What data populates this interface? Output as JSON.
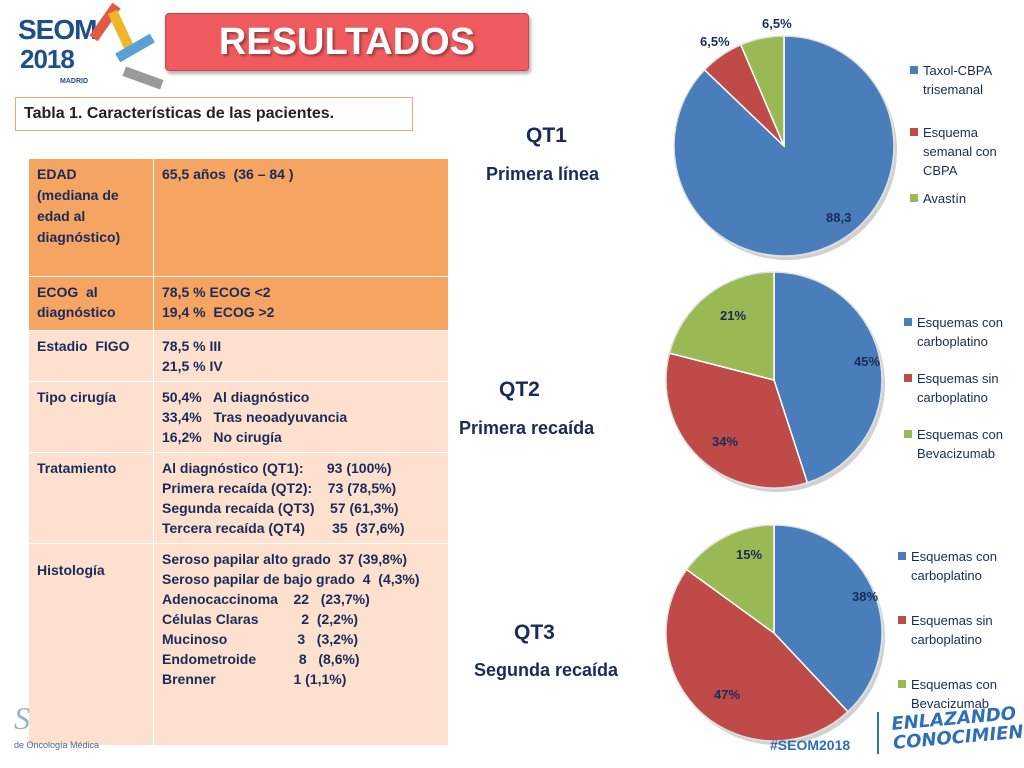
{
  "header": {
    "logo_line1": "SEOM",
    "logo_line2": "2018",
    "logo_city": "MADRID",
    "title": "RESULTADOS"
  },
  "table": {
    "caption": "Tabla 1. Características de las pacientes.",
    "rows": [
      {
        "label": [
          "EDAD",
          "(mediana de",
          "edad al",
          "diagnóstico)"
        ],
        "value": [
          "65,5 años  (36 – 84 )"
        ]
      },
      {
        "label": [
          "ECOG  al",
          "diagnóstico"
        ],
        "value": [
          "78,5 % ECOG <2",
          "19,4 %  ECOG >2"
        ]
      },
      {
        "label": [
          "Estadio  FIGO"
        ],
        "value": [
          "78,5 % III",
          "21,5 % IV"
        ]
      },
      {
        "label": [
          "Tipo cirugía"
        ],
        "value": [
          "50,4%   Al diagnóstico",
          "33,4%   Tras neoadyuvancia",
          "16,2%   No cirugía"
        ]
      },
      {
        "label": [
          "Tratamiento"
        ],
        "value": [
          "Al diagnóstico (QT1):      93 (100%)",
          "Primera recaída (QT2):    73 (78,5%)",
          "Segunda recaída (QT3)    57 (61,3%)",
          "Tercera recaída (QT4)       35  (37,6%)"
        ]
      },
      {
        "label": [
          "",
          "Histología"
        ],
        "value": [
          "Seroso papilar alto grado  37 (39,8%)",
          "Seroso papilar de bajo grado  4  (4,3%)",
          "Adenocaccinoma    22   (23,7%)",
          "Células Claras           2  (2,2%)",
          "Mucinoso                  3   (3,2%)",
          "Endometroide           8   (8,6%)",
          "Brenner                    1 (1,1%)"
        ]
      }
    ]
  },
  "chart_headings": [
    {
      "title": "QT1",
      "subtitle": "Primera línea"
    },
    {
      "title": "QT2",
      "subtitle": "Primera recaída"
    },
    {
      "title": "QT3",
      "subtitle": "Segunda recaída"
    }
  ],
  "colors": {
    "blue": "#4a7ebb",
    "red": "#be4b48",
    "green": "#98b954",
    "table_dark": "#f5a462",
    "table_light": "#fde0cd",
    "title_red": "#ee5a5e",
    "text_navy": "#1a2b5a"
  },
  "chart_data": [
    {
      "type": "pie",
      "title": "QT1",
      "categories": [
        "Taxol-CBPA trisemanal",
        "Esquema semanal con CBPA",
        "Avastín"
      ],
      "values": [
        88.3,
        6.5,
        6.5
      ],
      "data_labels": [
        "88,3",
        "6,5%",
        "6,5%"
      ],
      "legend": "right"
    },
    {
      "type": "pie",
      "title": "QT2",
      "categories": [
        "Esquemas con carboplatino",
        "Esquemas sin carboplatino",
        "Esquemas con Bevacizumab"
      ],
      "values": [
        45,
        34,
        21
      ],
      "data_labels": [
        "45%",
        "34%",
        "21%"
      ],
      "legend": "right"
    },
    {
      "type": "pie",
      "title": "QT3",
      "categories": [
        "Esquemas con carboplatino",
        "Esquemas sin carboplatino",
        "Esquemas con Bevacizumab"
      ],
      "values": [
        38,
        47,
        15
      ],
      "data_labels": [
        "38%",
        "47%",
        "15%"
      ],
      "legend": "right"
    }
  ],
  "legend_lines": [
    [
      [
        "Taxol-CBPA",
        "trisemanal"
      ],
      [
        "Esquema",
        "semanal con",
        "CBPA"
      ],
      [
        "Avastín"
      ]
    ],
    [
      [
        "Esquemas con",
        "carboplatino"
      ],
      [
        "Esquemas sin",
        "carboplatino"
      ],
      [
        "Esquemas con",
        "Bevacizumab"
      ]
    ],
    [
      [
        "Esquemas con",
        "carboplatino"
      ],
      [
        "Esquemas sin",
        "carboplatino"
      ],
      [
        "Esquemas con",
        "Bevacizumab"
      ]
    ]
  ],
  "footer": {
    "org_mark": "S",
    "org_small": "de Oncología Médica",
    "hashtag": "#SEOM2018",
    "tagline_line1": "ENLAZANDO",
    "tagline_line2": "CONOCIMIENTO"
  }
}
